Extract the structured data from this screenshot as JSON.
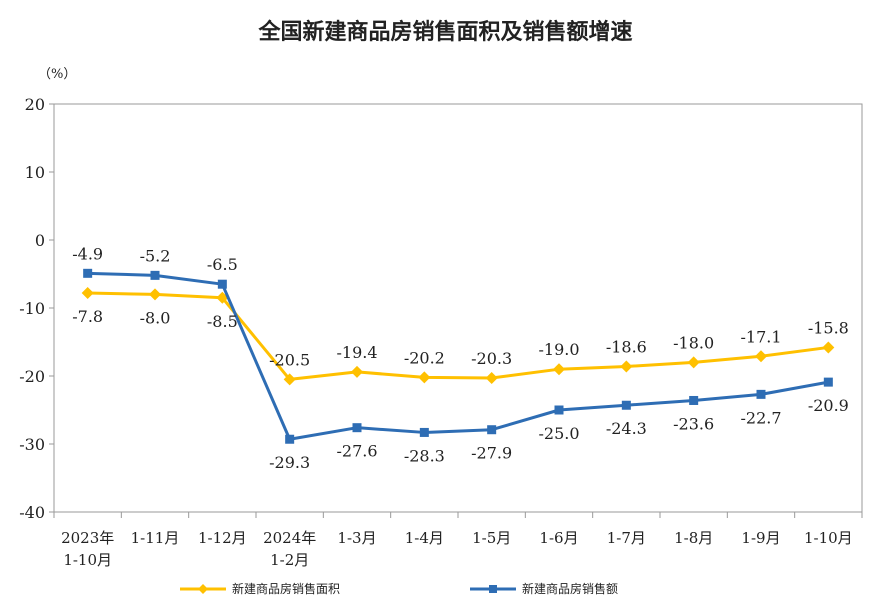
{
  "chart_data": {
    "type": "line",
    "title": "全国新建商品房销售面积及销售额增速",
    "ylabel": "（%）",
    "ylim": [
      -40,
      20
    ],
    "yticks": [
      20,
      10,
      0,
      -10,
      -20,
      -30,
      -40
    ],
    "grid": false,
    "legend_position": "bottom",
    "categories": [
      [
        "2023年",
        "1-10月"
      ],
      [
        "1-11月"
      ],
      [
        "1-12月"
      ],
      [
        "2024年",
        "1-2月"
      ],
      [
        "1-3月"
      ],
      [
        "1-4月"
      ],
      [
        "1-5月"
      ],
      [
        "1-6月"
      ],
      [
        "1-7月"
      ],
      [
        "1-8月"
      ],
      [
        "1-9月"
      ],
      [
        "1-10月"
      ]
    ],
    "series": [
      {
        "name": "新建商品房销售面积",
        "color": "#FFC000",
        "marker": "diamond",
        "label_position": [
          "below",
          "below",
          "below",
          "above",
          "above",
          "above",
          "above",
          "above",
          "above",
          "above",
          "above",
          "above"
        ],
        "values": [
          -7.8,
          -8.0,
          -8.5,
          -20.5,
          -19.4,
          -20.2,
          -20.3,
          -19.0,
          -18.6,
          -18.0,
          -17.1,
          -15.8
        ]
      },
      {
        "name": "新建商品房销售额",
        "color": "#2E6DB4",
        "marker": "square",
        "label_position": [
          "above",
          "above",
          "above",
          "below",
          "below",
          "below",
          "below",
          "below",
          "below",
          "below",
          "below",
          "below"
        ],
        "values": [
          -4.9,
          -5.2,
          -6.5,
          -29.3,
          -27.6,
          -28.3,
          -27.9,
          -25.0,
          -24.3,
          -23.6,
          -22.7,
          -20.9
        ]
      }
    ]
  }
}
